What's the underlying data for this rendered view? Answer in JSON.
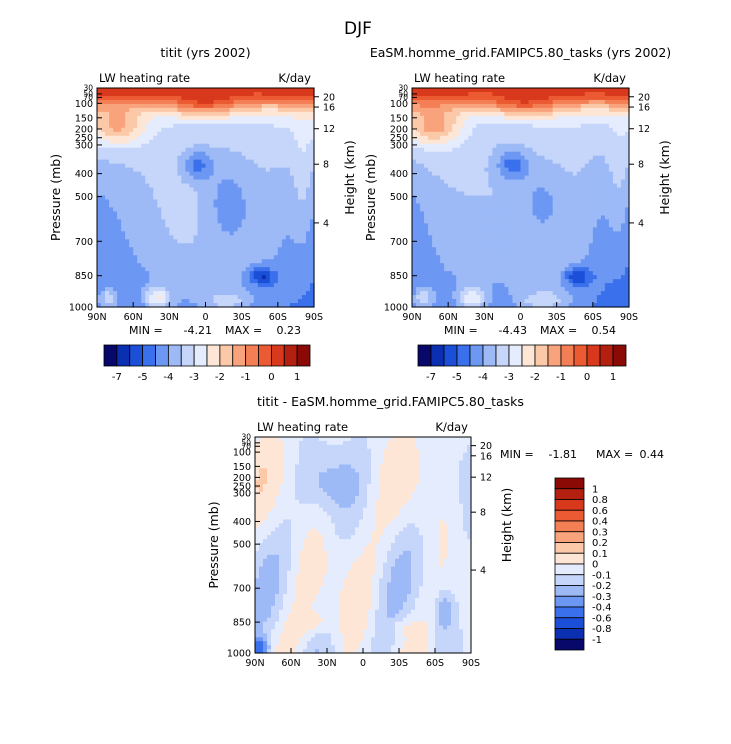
{
  "figure_title": "DJF",
  "colors": {
    "neg_ramp": [
      "#08086b",
      "#0a2fb0",
      "#1c4fd8",
      "#3a70ec",
      "#6c97f3",
      "#9dbaf7",
      "#c6d6fb",
      "#e4ecfd"
    ],
    "pos_ramp": [
      "#fde6d6",
      "#fbc8a8",
      "#f9a37c",
      "#f47f55",
      "#ec5a33",
      "#d8391c",
      "#b4200f",
      "#8c0a06"
    ]
  },
  "panels": [
    {
      "title": "titit (yrs 2002)",
      "left_label": "LW heating rate",
      "right_label": "K/day",
      "ylabel": "Pressure (mb)",
      "y2label": "Height (km)",
      "x_ticks": [
        "90N",
        "60N",
        "30N",
        "0",
        "30S",
        "60S",
        "90S"
      ],
      "y_ticks": [
        "30",
        "50",
        "70",
        "100",
        "150",
        "200",
        "250",
        "300",
        "400",
        "500",
        "700",
        "850",
        "1000"
      ],
      "y2_ticks": [
        "20",
        "16",
        "12",
        "8",
        "4"
      ],
      "stats": {
        "min_label": "MIN =",
        "min": "-4.21",
        "max_label": "MAX =",
        "max": "0.23"
      }
    },
    {
      "title": "EaSM.homme_grid.FAMIPC5.80_tasks (yrs 2002)",
      "left_label": "LW heating rate",
      "right_label": "K/day",
      "ylabel": "Pressure (mb)",
      "y2label": "Height (km)",
      "x_ticks": [
        "90N",
        "60N",
        "30N",
        "0",
        "30S",
        "60S",
        "90S"
      ],
      "y_ticks": [
        "30",
        "50",
        "70",
        "100",
        "150",
        "200",
        "250",
        "300",
        "400",
        "500",
        "700",
        "850",
        "1000"
      ],
      "y2_ticks": [
        "20",
        "16",
        "12",
        "8",
        "4"
      ],
      "stats": {
        "min_label": "MIN =",
        "min": "-4.43",
        "max_label": "MAX =",
        "max": "0.54"
      }
    },
    {
      "title": "titit - EaSM.homme_grid.FAMIPC5.80_tasks",
      "left_label": "LW heating rate",
      "right_label": "K/day",
      "ylabel": "Pressure (mb)",
      "y2label": "Height (km)",
      "x_ticks": [
        "90N",
        "60N",
        "30N",
        "0",
        "30S",
        "60S",
        "90S"
      ],
      "y_ticks": [
        "30",
        "50",
        "70",
        "100",
        "150",
        "200",
        "250",
        "300",
        "400",
        "500",
        "700",
        "850",
        "1000"
      ],
      "y2_ticks": [
        "20",
        "16",
        "12",
        "8",
        "4"
      ],
      "stats": {
        "min_label": "MIN =",
        "min": "-1.81",
        "max_label": "MAX =",
        "max": "0.44"
      }
    }
  ],
  "colorbar_top": {
    "labels": [
      "-7",
      "-5",
      "-4",
      "-3",
      "-2",
      "-1",
      "0",
      "1"
    ],
    "colors": [
      "#08086b",
      "#0a2fb0",
      "#1c4fd8",
      "#3a70ec",
      "#6c97f3",
      "#9dbaf7",
      "#c6d6fb",
      "#e4ecfd",
      "#fde6d6",
      "#fbc8a8",
      "#f9a37c",
      "#f47f55",
      "#ec5a33",
      "#d8391c",
      "#b4200f",
      "#8c0a06"
    ]
  },
  "colorbar_diff": {
    "labels": [
      "1",
      "0.8",
      "0.6",
      "0.4",
      "0.3",
      "0.2",
      "0.1",
      "0",
      "-0.1",
      "-0.2",
      "-0.3",
      "-0.4",
      "-0.6",
      "-0.8",
      "-1"
    ],
    "colors": [
      "#8c0a06",
      "#b4200f",
      "#d8391c",
      "#ec5a33",
      "#f47f55",
      "#f9a37c",
      "#fbc8a8",
      "#fde6d6",
      "#e4ecfd",
      "#c6d6fb",
      "#9dbaf7",
      "#6c97f3",
      "#3a70ec",
      "#1c4fd8",
      "#0a2fb0",
      "#08086b"
    ]
  },
  "chart_data": [
    {
      "type": "heatmap",
      "title": "titit (yrs 2002)",
      "variable": "LW heating rate",
      "units": "K/day",
      "x_ticks": [
        "90N",
        "60N",
        "30N",
        "0",
        "30S",
        "60S",
        "90S"
      ],
      "xlim": [
        90,
        -90
      ],
      "y_ticks_pressure": [
        30,
        50,
        70,
        100,
        150,
        200,
        250,
        300,
        400,
        500,
        700,
        850,
        1000
      ],
      "ylim_pressure": [
        1000,
        30
      ],
      "y_scale": "log",
      "y2_ticks_height_km": [
        20,
        16,
        12,
        8,
        4
      ],
      "min": -4.21,
      "max": 0.23
    },
    {
      "type": "heatmap",
      "title": "EaSM.homme_grid.FAMIPC5.80_tasks (yrs 2002)",
      "variable": "LW heating rate",
      "units": "K/day",
      "x_ticks": [
        "90N",
        "60N",
        "30N",
        "0",
        "30S",
        "60S",
        "90S"
      ],
      "xlim": [
        90,
        -90
      ],
      "y_ticks_pressure": [
        30,
        50,
        70,
        100,
        150,
        200,
        250,
        300,
        400,
        500,
        700,
        850,
        1000
      ],
      "ylim_pressure": [
        1000,
        30
      ],
      "y_scale": "log",
      "y2_ticks_height_km": [
        20,
        16,
        12,
        8,
        4
      ],
      "min": -4.43,
      "max": 0.54
    },
    {
      "type": "heatmap",
      "title": "titit - EaSM.homme_grid.FAMIPC5.80_tasks",
      "variable": "LW heating rate",
      "units": "K/day",
      "x_ticks": [
        "90N",
        "60N",
        "30N",
        "0",
        "30S",
        "60S",
        "90S"
      ],
      "xlim": [
        90,
        -90
      ],
      "y_ticks_pressure": [
        30,
        50,
        70,
        100,
        150,
        200,
        250,
        300,
        400,
        500,
        700,
        850,
        1000
      ],
      "ylim_pressure": [
        1000,
        30
      ],
      "y_scale": "log",
      "y2_ticks_height_km": [
        20,
        16,
        12,
        8,
        4
      ],
      "min": -1.81,
      "max": 0.44,
      "colorbar_levels": [
        1,
        0.8,
        0.6,
        0.4,
        0.3,
        0.2,
        0.1,
        0,
        -0.1,
        -0.2,
        -0.3,
        -0.4,
        -0.6,
        -0.8,
        -1
      ]
    }
  ]
}
